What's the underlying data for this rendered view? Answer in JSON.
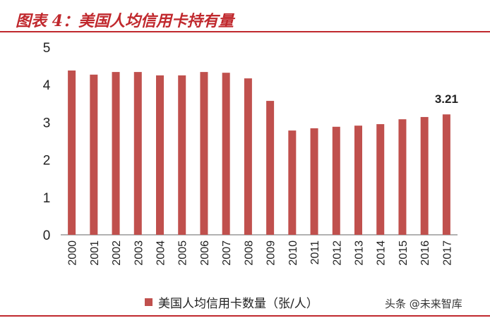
{
  "title": "图表 4：美国人均信用卡持有量",
  "watermark": "头条 @未来智库",
  "chart_data": {
    "type": "bar",
    "title": "图表 4：美国人均信用卡持有量",
    "categories": [
      "2000",
      "2001",
      "2002",
      "2003",
      "2004",
      "2005",
      "2006",
      "2007",
      "2008",
      "2009",
      "2010",
      "2011",
      "2012",
      "2013",
      "2014",
      "2015",
      "2016",
      "2017"
    ],
    "series": [
      {
        "name": "美国人均信用卡数量（张/人）",
        "values": [
          4.38,
          4.27,
          4.34,
          4.34,
          4.25,
          4.25,
          4.34,
          4.32,
          4.17,
          3.57,
          2.78,
          2.84,
          2.88,
          2.91,
          2.95,
          3.08,
          3.14,
          3.21
        ]
      }
    ],
    "yticks": [
      "0",
      "1",
      "2",
      "3",
      "4",
      "5"
    ],
    "ylim": [
      0,
      5
    ],
    "annotations": [
      {
        "category": "2017",
        "text": "3.21"
      }
    ],
    "legend": "bottom",
    "grid": false,
    "color": "#c0504d"
  }
}
